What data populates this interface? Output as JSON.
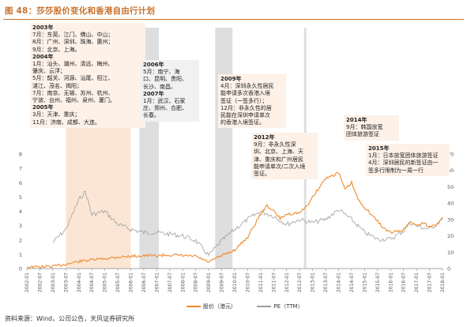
{
  "figure": {
    "title": "图 48：莎莎股价变化和香港自由行计划",
    "source": "资料来源：Wind，公司公告，天风证券研究所"
  },
  "colors": {
    "accent": "#c9732e",
    "price_line": "#ef8a2a",
    "pe_line": "#9e9e9e",
    "band_orange": "#fbe3d0",
    "band_gray": "#d6d6d6",
    "note_bg": "#fdf1e8"
  },
  "notes": [
    {
      "id": "n2003",
      "lines": [
        {
          "t": "2003年",
          "h": true
        },
        {
          "t": "7月：东莞、江门、佛山、中山；",
          "h": false
        },
        {
          "t": "8月：广州、深圳、珠海、惠州；",
          "h": false
        },
        {
          "t": "9月：北京、上海。",
          "h": false
        },
        {
          "t": "2004年",
          "h": true
        },
        {
          "t": "1月：汕头、潮州、清远、梅州、",
          "h": false
        },
        {
          "t": "肇庆、云浮；",
          "h": false
        },
        {
          "t": "5月：韶关、河源、汕尾、阳江、",
          "h": false
        },
        {
          "t": "湛江、茂名、揭阳；",
          "h": false
        },
        {
          "t": "7月：南京、无锡、苏州、杭州、",
          "h": false
        },
        {
          "t": "宁波、台州、福州、泉州、厦门。",
          "h": false
        },
        {
          "t": "2005年",
          "h": true
        },
        {
          "t": "3月：天津、重庆；",
          "h": false
        },
        {
          "t": "11月：济南、成都、大连。",
          "h": false
        }
      ]
    },
    {
      "id": "n2006",
      "lines": [
        {
          "t": "2006年",
          "h": true
        },
        {
          "t": "5月：南宁、海",
          "h": false
        },
        {
          "t": "口、昆明、贵阳、",
          "h": false
        },
        {
          "t": "长沙、南昌。",
          "h": false
        },
        {
          "t": "2007年",
          "h": true
        },
        {
          "t": "1月：武汉、石家",
          "h": false
        },
        {
          "t": "庄、郑州、合肥、",
          "h": false
        },
        {
          "t": "长春。",
          "h": false
        }
      ]
    },
    {
      "id": "n2009",
      "lines": [
        {
          "t": "2009年",
          "h": true
        },
        {
          "t": "4月：深圳永久性居民",
          "h": false
        },
        {
          "t": "能申请多次香港入境",
          "h": false
        },
        {
          "t": "签证（一签多行）；",
          "h": false
        },
        {
          "t": "12月：非永久性的居",
          "h": false
        },
        {
          "t": "民能在深圳申请单次",
          "h": false
        },
        {
          "t": "的香港入境签证。",
          "h": false
        }
      ]
    },
    {
      "id": "n2012",
      "lines": [
        {
          "t": "2012年",
          "h": true
        },
        {
          "t": "9月：非永久性深",
          "h": false
        },
        {
          "t": "圳、北京、上海、天",
          "h": false
        },
        {
          "t": "津、重庆和广州居民",
          "h": false
        },
        {
          "t": "能申请单次/二次入境",
          "h": false
        },
        {
          "t": "签证。",
          "h": false
        }
      ]
    },
    {
      "id": "n2014",
      "lines": [
        {
          "t": "2014年",
          "h": true
        },
        {
          "t": "9月：韩国放宽",
          "h": false
        },
        {
          "t": "团体旅游签证",
          "h": false
        }
      ]
    },
    {
      "id": "n2015",
      "lines": [
        {
          "t": "2015年",
          "h": true
        },
        {
          "t": "1月：日本放宽团体旅游签证",
          "h": false
        },
        {
          "t": "4月：深圳居民的新签证由一",
          "h": false
        },
        {
          "t": "签多行限制为一周一行",
          "h": false
        }
      ]
    }
  ],
  "chart_data": {
    "type": "line",
    "title": "图 48：莎莎股价变化和香港自由行计划",
    "x_ticks": [
      "2002-01",
      "2002-07",
      "2003-01",
      "2003-07",
      "2004-01",
      "2004-07",
      "2005-01",
      "2005-07",
      "2006-01",
      "2006-07",
      "2007-01",
      "2007-07",
      "2008-01",
      "2008-07",
      "2009-01",
      "2009-07",
      "2010-01",
      "2010-07",
      "2011-01",
      "2011-07",
      "2012-01",
      "2012-07",
      "2013-01",
      "2013-07",
      "2014-01",
      "2014-07",
      "2015-01",
      "2015-07",
      "2016-01",
      "2016-07",
      "2017-01",
      "2017-07",
      "2018-01"
    ],
    "y_left_ticks": [
      "0",
      "1",
      "2",
      "3",
      "4",
      "5",
      "6",
      "7",
      "8"
    ],
    "y_right_ticks": [
      "0",
      "10",
      "20",
      "30",
      "40",
      "50",
      "60",
      "70"
    ],
    "ylim_left": [
      0,
      8
    ],
    "ylim_right": [
      0,
      70
    ],
    "grid": false,
    "legend_position": "bottom-center",
    "shaded_periods": [
      {
        "start": "2003-07",
        "end": "2006-01",
        "color": "orange"
      },
      {
        "start": "2006-05",
        "end": "2007-02",
        "color": "gray"
      },
      {
        "start": "2009-04",
        "end": "2009-12",
        "color": "gray"
      },
      {
        "start": "2012-09",
        "end": "2012-10",
        "color": "gray"
      }
    ],
    "series": [
      {
        "name": "股价（港元）",
        "axis": "left",
        "points": [
          [
            "2002-01",
            0.1
          ],
          [
            "2002-07",
            0.12
          ],
          [
            "2003-01",
            0.15
          ],
          [
            "2003-07",
            0.3
          ],
          [
            "2004-01",
            0.5
          ],
          [
            "2004-07",
            0.6
          ],
          [
            "2005-01",
            0.7
          ],
          [
            "2005-07",
            0.8
          ],
          [
            "2006-01",
            0.85
          ],
          [
            "2006-07",
            0.9
          ],
          [
            "2007-01",
            0.9
          ],
          [
            "2007-07",
            0.95
          ],
          [
            "2008-01",
            0.9
          ],
          [
            "2008-07",
            0.85
          ],
          [
            "2009-01",
            0.45
          ],
          [
            "2009-07",
            0.9
          ],
          [
            "2010-01",
            1.3
          ],
          [
            "2010-07",
            2.2
          ],
          [
            "2011-01",
            3.8
          ],
          [
            "2011-04",
            4.4
          ],
          [
            "2011-07",
            4.0
          ],
          [
            "2011-10",
            3.5
          ],
          [
            "2012-01",
            3.8
          ],
          [
            "2012-07",
            3.9
          ],
          [
            "2012-10",
            4.3
          ],
          [
            "2013-01",
            5.0
          ],
          [
            "2013-07",
            6.3
          ],
          [
            "2013-10",
            6.5
          ],
          [
            "2014-01",
            6.7
          ],
          [
            "2014-04",
            5.5
          ],
          [
            "2014-07",
            6.0
          ],
          [
            "2014-10",
            4.8
          ],
          [
            "2015-01",
            4.3
          ],
          [
            "2015-04",
            3.8
          ],
          [
            "2015-07",
            3.3
          ],
          [
            "2015-10",
            2.8
          ],
          [
            "2016-01",
            2.5
          ],
          [
            "2016-07",
            2.7
          ],
          [
            "2016-10",
            3.3
          ],
          [
            "2017-01",
            3.0
          ],
          [
            "2017-04",
            3.2
          ],
          [
            "2017-07",
            2.9
          ],
          [
            "2017-10",
            3.1
          ],
          [
            "2018-01",
            3.6
          ]
        ]
      },
      {
        "name": "PE（TTM）",
        "axis": "right",
        "points": [
          [
            "2003-01",
            16
          ],
          [
            "2003-07",
            24
          ],
          [
            "2004-01",
            42
          ],
          [
            "2004-04",
            47
          ],
          [
            "2004-07",
            33
          ],
          [
            "2005-01",
            35
          ],
          [
            "2005-07",
            27
          ],
          [
            "2006-01",
            24
          ],
          [
            "2006-07",
            22
          ],
          [
            "2007-01",
            22
          ],
          [
            "2007-07",
            21
          ],
          [
            "2008-01",
            20
          ],
          [
            "2008-07",
            17
          ],
          [
            "2009-01",
            8
          ],
          [
            "2009-07",
            17
          ],
          [
            "2010-01",
            24
          ],
          [
            "2010-07",
            30
          ],
          [
            "2011-01",
            35
          ],
          [
            "2011-07",
            32
          ],
          [
            "2012-01",
            27
          ],
          [
            "2012-07",
            30
          ],
          [
            "2013-01",
            28
          ],
          [
            "2013-07",
            30
          ],
          [
            "2014-01",
            36
          ],
          [
            "2014-07",
            30
          ],
          [
            "2015-01",
            22
          ],
          [
            "2015-07",
            18
          ],
          [
            "2016-01",
            18
          ],
          [
            "2016-07",
            23
          ],
          [
            "2016-10",
            28
          ],
          [
            "2017-01",
            26
          ],
          [
            "2017-07",
            24
          ],
          [
            "2018-01",
            30
          ]
        ]
      }
    ]
  }
}
